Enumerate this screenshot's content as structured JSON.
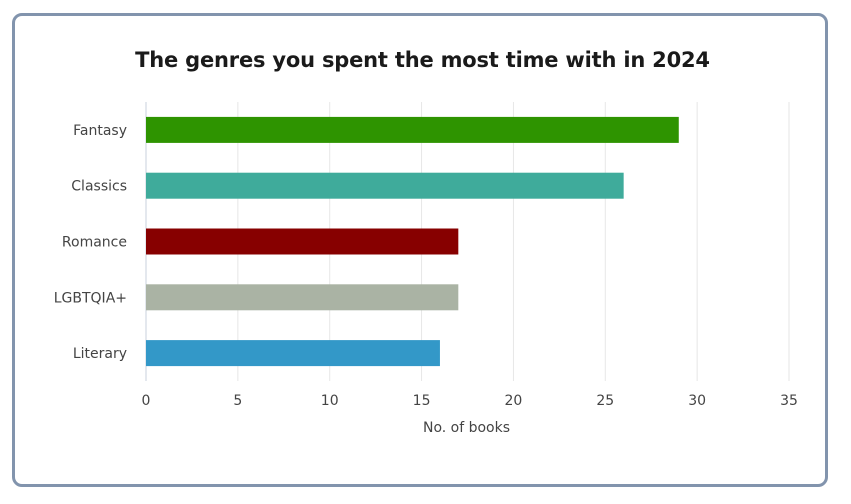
{
  "chart_data": {
    "type": "bar",
    "orientation": "horizontal",
    "title": "The genres you spent the most time with in 2024",
    "xlabel": "No. of books",
    "ylabel": "",
    "categories": [
      "Fantasy",
      "Classics",
      "Romance",
      "LGBTQIA+",
      "Literary"
    ],
    "values": [
      29,
      26,
      17,
      17,
      16
    ],
    "colors": [
      "#2e9400",
      "#3fab9b",
      "#870000",
      "#aab3a4",
      "#3398c8"
    ],
    "xlim": [
      0,
      35
    ],
    "xticks": [
      0,
      5,
      10,
      15,
      20,
      25,
      30,
      35
    ],
    "grid": true,
    "legend": "none"
  }
}
